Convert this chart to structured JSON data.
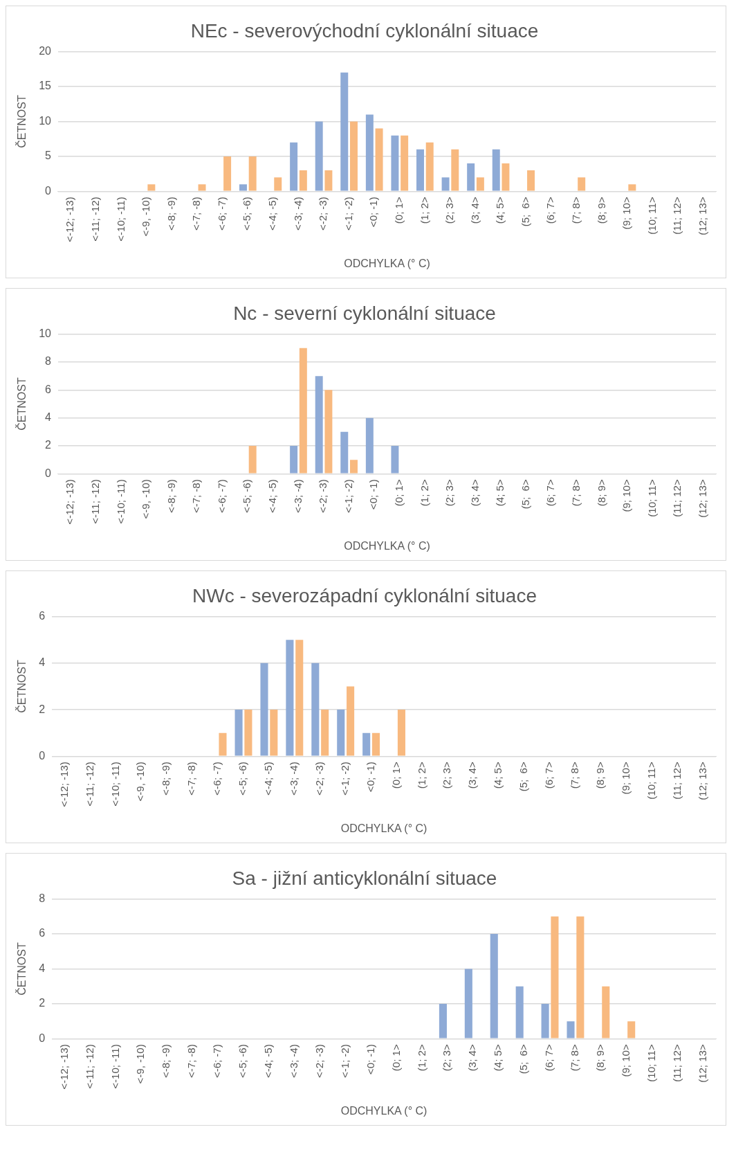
{
  "chart_data": [
    {
      "type": "bar",
      "title": "NEc - severovýchodní cyklonální situace",
      "xlabel": "ODCHYLKA (° C)",
      "ylabel": "ČETNOST",
      "categories": [
        "<-12; -13)",
        "<-11; -12)",
        "<-10; -11)",
        "<-9, -10)",
        "<-8; -9)",
        "<-7; -8)",
        "<-6; -7)",
        "<-5; -6)",
        "<-4; -5)",
        "<-3; -4)",
        "<-2; -3)",
        "<-1; -2)",
        "<0; -1)",
        "(0; 1>",
        "(1; 2>",
        "(2; 3>",
        "(3; 4>",
        "(4; 5>",
        "(5;  6>",
        "(6; 7>",
        "(7; 8>",
        "(8; 9>",
        "(9; 10>",
        "(10; 11>",
        "(11; 12>",
        "(12; 13>"
      ],
      "series": [
        {
          "color": "#8eaad6",
          "values": [
            0,
            0,
            0,
            0,
            0,
            0,
            0,
            1,
            0,
            7,
            10,
            17,
            11,
            8,
            6,
            2,
            4,
            6,
            0,
            0,
            0,
            0,
            0,
            0,
            0,
            0
          ]
        },
        {
          "color": "#f8b97f",
          "values": [
            0,
            0,
            0,
            1,
            0,
            1,
            5,
            5,
            2,
            3,
            3,
            10,
            9,
            8,
            7,
            6,
            2,
            4,
            3,
            0,
            2,
            0,
            1,
            0,
            0,
            0
          ]
        }
      ],
      "ylim": [
        0,
        20
      ],
      "yticks": [
        0,
        5,
        10,
        15,
        20
      ],
      "grid": "y",
      "legend": false
    },
    {
      "type": "bar",
      "title": "Nc - severní cyklonální situace",
      "xlabel": "ODCHYLKA (° C)",
      "ylabel": "ČETNOST",
      "categories": [
        "<-12; -13)",
        "<-11; -12)",
        "<-10; -11)",
        "<-9, -10)",
        "<-8; -9)",
        "<-7; -8)",
        "<-6; -7)",
        "<-5; -6)",
        "<-4; -5)",
        "<-3; -4)",
        "<-2; -3)",
        "<-1; -2)",
        "<0; -1)",
        "(0; 1>",
        "(1; 2>",
        "(2; 3>",
        "(3; 4>",
        "(4; 5>",
        "(5;  6>",
        "(6; 7>",
        "(7; 8>",
        "(8; 9>",
        "(9; 10>",
        "(10; 11>",
        "(11; 12>",
        "(12; 13>"
      ],
      "series": [
        {
          "color": "#8eaad6",
          "values": [
            0,
            0,
            0,
            0,
            0,
            0,
            0,
            0,
            0,
            2,
            7,
            3,
            4,
            2,
            0,
            0,
            0,
            0,
            0,
            0,
            0,
            0,
            0,
            0,
            0,
            0
          ]
        },
        {
          "color": "#f8b97f",
          "values": [
            0,
            0,
            0,
            0,
            0,
            0,
            0,
            2,
            0,
            9,
            6,
            1,
            0,
            0,
            0,
            0,
            0,
            0,
            0,
            0,
            0,
            0,
            0,
            0,
            0,
            0
          ]
        }
      ],
      "ylim": [
        0,
        10
      ],
      "yticks": [
        0,
        2,
        4,
        6,
        8,
        10
      ],
      "grid": "y",
      "legend": false
    },
    {
      "type": "bar",
      "title": "NWc - severozápadní cyklonální situace",
      "xlabel": "ODCHYLKA (° C)",
      "ylabel": "ČETNOST",
      "categories": [
        "<-12; -13)",
        "<-11; -12)",
        "<-10; -11)",
        "<-9, -10)",
        "<-8; -9)",
        "<-7; -8)",
        "<-6; -7)",
        "<-5; -6)",
        "<-4; -5)",
        "<-3; -4)",
        "<-2; -3)",
        "<-1; -2)",
        "<0; -1)",
        "(0; 1>",
        "(1; 2>",
        "(2; 3>",
        "(3; 4>",
        "(4; 5>",
        "(5;  6>",
        "(6; 7>",
        "(7; 8>",
        "(8; 9>",
        "(9; 10>",
        "(10; 11>",
        "(11; 12>",
        "(12; 13>"
      ],
      "series": [
        {
          "color": "#8eaad6",
          "values": [
            0,
            0,
            0,
            0,
            0,
            0,
            0,
            2,
            4,
            5,
            4,
            2,
            1,
            0,
            0,
            0,
            0,
            0,
            0,
            0,
            0,
            0,
            0,
            0,
            0,
            0
          ]
        },
        {
          "color": "#f8b97f",
          "values": [
            0,
            0,
            0,
            0,
            0,
            0,
            1,
            2,
            2,
            5,
            2,
            3,
            1,
            2,
            0,
            0,
            0,
            0,
            0,
            0,
            0,
            0,
            0,
            0,
            0,
            0
          ]
        }
      ],
      "ylim": [
        0,
        6
      ],
      "yticks": [
        0,
        2,
        4,
        6
      ],
      "grid": "y",
      "legend": false
    },
    {
      "type": "bar",
      "title": "Sa - jižní anticyklonální situace",
      "xlabel": "ODCHYLKA (° C)",
      "ylabel": "ČETNOST",
      "categories": [
        "<-12; -13)",
        "<-11; -12)",
        "<-10; -11)",
        "<-9, -10)",
        "<-8; -9)",
        "<-7; -8)",
        "<-6; -7)",
        "<-5; -6)",
        "<-4; -5)",
        "<-3; -4)",
        "<-2; -3)",
        "<-1; -2)",
        "<0; -1)",
        "(0; 1>",
        "(1; 2>",
        "(2; 3>",
        "(3; 4>",
        "(4; 5>",
        "(5;  6>",
        "(6; 7>",
        "(7; 8>",
        "(8; 9>",
        "(9; 10>",
        "(10; 11>",
        "(11; 12>",
        "(12; 13>"
      ],
      "series": [
        {
          "color": "#8eaad6",
          "values": [
            0,
            0,
            0,
            0,
            0,
            0,
            0,
            0,
            0,
            0,
            0,
            0,
            0,
            0,
            0,
            2,
            4,
            6,
            3,
            2,
            1,
            0,
            0,
            0,
            0,
            0
          ]
        },
        {
          "color": "#f8b97f",
          "values": [
            0,
            0,
            0,
            0,
            0,
            0,
            0,
            0,
            0,
            0,
            0,
            0,
            0,
            0,
            0,
            0,
            0,
            0,
            0,
            7,
            7,
            3,
            1,
            0,
            0,
            0
          ]
        }
      ],
      "ylim": [
        0,
        8
      ],
      "yticks": [
        0,
        2,
        4,
        6,
        8
      ],
      "grid": "y",
      "legend": false
    }
  ]
}
